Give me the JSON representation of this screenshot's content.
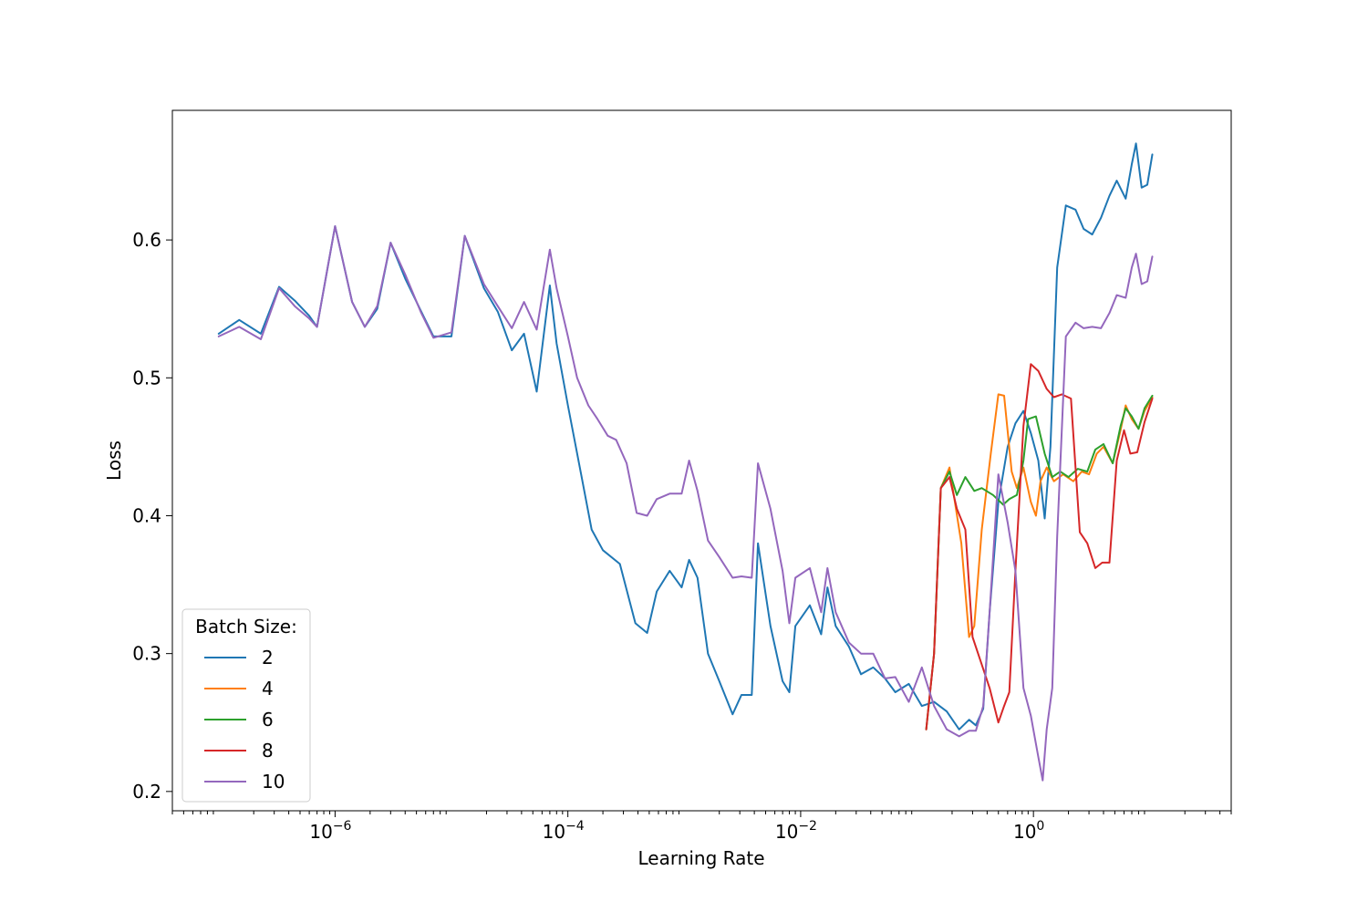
{
  "chart_data": {
    "type": "line",
    "xlabel": "Learning Rate",
    "ylabel": "Loss",
    "xscale": "log",
    "xlim": [
      4e-08,
      50
    ],
    "ylim": [
      0.186,
      0.694
    ],
    "grid": false,
    "x_ticks": [
      {
        "value": 1e-06,
        "base": "10",
        "exp": "−6"
      },
      {
        "value": 0.0001,
        "base": "10",
        "exp": "−4"
      },
      {
        "value": 0.01,
        "base": "10",
        "exp": "−2"
      },
      {
        "value": 1,
        "base": "10",
        "exp": "0"
      }
    ],
    "y_ticks": [
      {
        "value": 0.2,
        "label": "0.2"
      },
      {
        "value": 0.3,
        "label": "0.3"
      },
      {
        "value": 0.4,
        "label": "0.4"
      },
      {
        "value": 0.5,
        "label": "0.5"
      },
      {
        "value": 0.6,
        "label": "0.6"
      }
    ],
    "legend": {
      "title": "Batch Size:",
      "position": "lower-left"
    },
    "series": [
      {
        "name": "2",
        "color": "#1f77b4",
        "points": [
          [
            1e-07,
            0.532
          ],
          [
            1.5e-07,
            0.542
          ],
          [
            2.3e-07,
            0.532
          ],
          [
            3.3e-07,
            0.566
          ],
          [
            4.5e-07,
            0.556
          ],
          [
            6e-07,
            0.545
          ],
          [
            7e-07,
            0.537
          ],
          [
            1e-06,
            0.61
          ],
          [
            1.4e-06,
            0.555
          ],
          [
            1.8e-06,
            0.537
          ],
          [
            2.3e-06,
            0.55
          ],
          [
            3e-06,
            0.598
          ],
          [
            4e-06,
            0.572
          ],
          [
            5.5e-06,
            0.548
          ],
          [
            7e-06,
            0.53
          ],
          [
            1e-05,
            0.53
          ],
          [
            1.3e-05,
            0.603
          ],
          [
            1.9e-05,
            0.565
          ],
          [
            2.5e-05,
            0.548
          ],
          [
            3.3e-05,
            0.52
          ],
          [
            4.2e-05,
            0.532
          ],
          [
            5.4e-05,
            0.49
          ],
          [
            7e-05,
            0.567
          ],
          [
            8e-05,
            0.525
          ],
          [
            0.0001,
            0.48
          ],
          [
            0.00013,
            0.43
          ],
          [
            0.00016,
            0.39
          ],
          [
            0.0002,
            0.375
          ],
          [
            0.00028,
            0.365
          ],
          [
            0.00038,
            0.322
          ],
          [
            0.00048,
            0.315
          ],
          [
            0.00058,
            0.345
          ],
          [
            0.00075,
            0.36
          ],
          [
            0.00095,
            0.348
          ],
          [
            0.0011,
            0.368
          ],
          [
            0.0013,
            0.355
          ],
          [
            0.0016,
            0.3
          ],
          [
            0.002,
            0.28
          ],
          [
            0.0026,
            0.256
          ],
          [
            0.0031,
            0.27
          ],
          [
            0.0038,
            0.27
          ],
          [
            0.0043,
            0.38
          ],
          [
            0.0055,
            0.32
          ],
          [
            0.007,
            0.28
          ],
          [
            0.008,
            0.272
          ],
          [
            0.009,
            0.32
          ],
          [
            0.012,
            0.335
          ],
          [
            0.015,
            0.314
          ],
          [
            0.017,
            0.348
          ],
          [
            0.02,
            0.32
          ],
          [
            0.026,
            0.305
          ],
          [
            0.033,
            0.285
          ],
          [
            0.042,
            0.29
          ],
          [
            0.053,
            0.282
          ],
          [
            0.065,
            0.272
          ],
          [
            0.085,
            0.278
          ],
          [
            0.11,
            0.262
          ],
          [
            0.14,
            0.265
          ],
          [
            0.18,
            0.258
          ],
          [
            0.23,
            0.245
          ],
          [
            0.28,
            0.252
          ],
          [
            0.32,
            0.248
          ],
          [
            0.37,
            0.26
          ],
          [
            0.42,
            0.33
          ],
          [
            0.5,
            0.41
          ],
          [
            0.6,
            0.45
          ],
          [
            0.7,
            0.467
          ],
          [
            0.82,
            0.476
          ],
          [
            0.95,
            0.46
          ],
          [
            1.1,
            0.44
          ],
          [
            1.25,
            0.398
          ],
          [
            1.4,
            0.45
          ],
          [
            1.6,
            0.58
          ],
          [
            1.9,
            0.625
          ],
          [
            2.3,
            0.622
          ],
          [
            2.7,
            0.608
          ],
          [
            3.2,
            0.604
          ],
          [
            3.8,
            0.616
          ],
          [
            4.5,
            0.632
          ],
          [
            5.2,
            0.643
          ],
          [
            6.2,
            0.63
          ],
          [
            7.0,
            0.655
          ],
          [
            7.6,
            0.67
          ],
          [
            8.5,
            0.638
          ],
          [
            9.5,
            0.64
          ],
          [
            10.5,
            0.662
          ]
        ]
      },
      {
        "name": "4",
        "color": "#ff7f0e",
        "points": [
          [
            0.12,
            0.245
          ],
          [
            0.14,
            0.3
          ],
          [
            0.16,
            0.42
          ],
          [
            0.19,
            0.435
          ],
          [
            0.24,
            0.38
          ],
          [
            0.28,
            0.312
          ],
          [
            0.31,
            0.32
          ],
          [
            0.36,
            0.39
          ],
          [
            0.43,
            0.445
          ],
          [
            0.5,
            0.488
          ],
          [
            0.56,
            0.487
          ],
          [
            0.65,
            0.432
          ],
          [
            0.72,
            0.42
          ],
          [
            0.82,
            0.435
          ],
          [
            0.95,
            0.41
          ],
          [
            1.05,
            0.4
          ],
          [
            1.15,
            0.425
          ],
          [
            1.3,
            0.435
          ],
          [
            1.5,
            0.425
          ],
          [
            1.8,
            0.43
          ],
          [
            2.2,
            0.425
          ],
          [
            2.6,
            0.432
          ],
          [
            3.0,
            0.43
          ],
          [
            3.5,
            0.445
          ],
          [
            4.0,
            0.45
          ],
          [
            4.8,
            0.438
          ],
          [
            5.6,
            0.462
          ],
          [
            6.2,
            0.48
          ],
          [
            7.0,
            0.47
          ],
          [
            8.0,
            0.463
          ],
          [
            9.0,
            0.476
          ],
          [
            10.5,
            0.486
          ]
        ]
      },
      {
        "name": "6",
        "color": "#2ca02c",
        "points": [
          [
            0.12,
            0.245
          ],
          [
            0.14,
            0.3
          ],
          [
            0.16,
            0.42
          ],
          [
            0.19,
            0.432
          ],
          [
            0.22,
            0.415
          ],
          [
            0.26,
            0.428
          ],
          [
            0.31,
            0.418
          ],
          [
            0.36,
            0.42
          ],
          [
            0.45,
            0.415
          ],
          [
            0.55,
            0.408
          ],
          [
            0.62,
            0.412
          ],
          [
            0.72,
            0.415
          ],
          [
            0.82,
            0.44
          ],
          [
            0.9,
            0.47
          ],
          [
            1.05,
            0.472
          ],
          [
            1.25,
            0.445
          ],
          [
            1.45,
            0.428
          ],
          [
            1.7,
            0.432
          ],
          [
            2.0,
            0.428
          ],
          [
            2.4,
            0.434
          ],
          [
            2.9,
            0.432
          ],
          [
            3.4,
            0.448
          ],
          [
            4.0,
            0.452
          ],
          [
            4.8,
            0.438
          ],
          [
            5.6,
            0.465
          ],
          [
            6.2,
            0.478
          ],
          [
            7.0,
            0.472
          ],
          [
            8.0,
            0.463
          ],
          [
            9.0,
            0.478
          ],
          [
            10.5,
            0.487
          ]
        ]
      },
      {
        "name": "8",
        "color": "#d62728",
        "points": [
          [
            0.12,
            0.245
          ],
          [
            0.14,
            0.3
          ],
          [
            0.16,
            0.42
          ],
          [
            0.19,
            0.428
          ],
          [
            0.22,
            0.405
          ],
          [
            0.26,
            0.39
          ],
          [
            0.3,
            0.312
          ],
          [
            0.35,
            0.295
          ],
          [
            0.42,
            0.275
          ],
          [
            0.5,
            0.25
          ],
          [
            0.56,
            0.262
          ],
          [
            0.62,
            0.272
          ],
          [
            0.7,
            0.36
          ],
          [
            0.82,
            0.465
          ],
          [
            0.95,
            0.51
          ],
          [
            1.1,
            0.505
          ],
          [
            1.3,
            0.492
          ],
          [
            1.5,
            0.486
          ],
          [
            1.75,
            0.488
          ],
          [
            2.1,
            0.485
          ],
          [
            2.5,
            0.388
          ],
          [
            2.9,
            0.38
          ],
          [
            3.4,
            0.362
          ],
          [
            3.9,
            0.366
          ],
          [
            4.5,
            0.366
          ],
          [
            5.2,
            0.44
          ],
          [
            6.0,
            0.462
          ],
          [
            6.8,
            0.445
          ],
          [
            7.8,
            0.446
          ],
          [
            9.0,
            0.468
          ],
          [
            10.5,
            0.485
          ]
        ]
      },
      {
        "name": "10",
        "color": "#9467bd",
        "points": [
          [
            1e-07,
            0.53
          ],
          [
            1.5e-07,
            0.537
          ],
          [
            2.3e-07,
            0.528
          ],
          [
            3.3e-07,
            0.565
          ],
          [
            4.5e-07,
            0.552
          ],
          [
            6e-07,
            0.543
          ],
          [
            7e-07,
            0.537
          ],
          [
            1e-06,
            0.61
          ],
          [
            1.4e-06,
            0.555
          ],
          [
            1.8e-06,
            0.537
          ],
          [
            2.3e-06,
            0.552
          ],
          [
            3e-06,
            0.598
          ],
          [
            4e-06,
            0.575
          ],
          [
            5.5e-06,
            0.547
          ],
          [
            7e-06,
            0.529
          ],
          [
            1e-05,
            0.533
          ],
          [
            1.3e-05,
            0.603
          ],
          [
            1.9e-05,
            0.568
          ],
          [
            2.5e-05,
            0.552
          ],
          [
            3.3e-05,
            0.536
          ],
          [
            4.2e-05,
            0.555
          ],
          [
            5.4e-05,
            0.535
          ],
          [
            7e-05,
            0.593
          ],
          [
            8e-05,
            0.565
          ],
          [
            0.0001,
            0.53
          ],
          [
            0.00012,
            0.5
          ],
          [
            0.00015,
            0.48
          ],
          [
            0.00018,
            0.47
          ],
          [
            0.00022,
            0.458
          ],
          [
            0.00026,
            0.455
          ],
          [
            0.00032,
            0.438
          ],
          [
            0.00039,
            0.402
          ],
          [
            0.00048,
            0.4
          ],
          [
            0.00058,
            0.412
          ],
          [
            0.00075,
            0.416
          ],
          [
            0.00095,
            0.416
          ],
          [
            0.0011,
            0.44
          ],
          [
            0.0013,
            0.418
          ],
          [
            0.0016,
            0.382
          ],
          [
            0.002,
            0.37
          ],
          [
            0.0026,
            0.355
          ],
          [
            0.0031,
            0.356
          ],
          [
            0.0038,
            0.355
          ],
          [
            0.0043,
            0.438
          ],
          [
            0.0055,
            0.405
          ],
          [
            0.007,
            0.36
          ],
          [
            0.008,
            0.322
          ],
          [
            0.009,
            0.355
          ],
          [
            0.012,
            0.362
          ],
          [
            0.015,
            0.33
          ],
          [
            0.017,
            0.362
          ],
          [
            0.02,
            0.33
          ],
          [
            0.026,
            0.308
          ],
          [
            0.033,
            0.3
          ],
          [
            0.042,
            0.3
          ],
          [
            0.053,
            0.282
          ],
          [
            0.065,
            0.283
          ],
          [
            0.085,
            0.265
          ],
          [
            0.11,
            0.29
          ],
          [
            0.14,
            0.262
          ],
          [
            0.18,
            0.245
          ],
          [
            0.23,
            0.24
          ],
          [
            0.28,
            0.244
          ],
          [
            0.32,
            0.244
          ],
          [
            0.37,
            0.262
          ],
          [
            0.42,
            0.33
          ],
          [
            0.5,
            0.43
          ],
          [
            0.6,
            0.395
          ],
          [
            0.7,
            0.36
          ],
          [
            0.82,
            0.275
          ],
          [
            0.95,
            0.255
          ],
          [
            1.1,
            0.225
          ],
          [
            1.2,
            0.208
          ],
          [
            1.3,
            0.245
          ],
          [
            1.45,
            0.275
          ],
          [
            1.6,
            0.385
          ],
          [
            1.9,
            0.53
          ],
          [
            2.3,
            0.54
          ],
          [
            2.7,
            0.536
          ],
          [
            3.2,
            0.537
          ],
          [
            3.8,
            0.536
          ],
          [
            4.5,
            0.547
          ],
          [
            5.2,
            0.56
          ],
          [
            6.2,
            0.558
          ],
          [
            7.0,
            0.58
          ],
          [
            7.6,
            0.59
          ],
          [
            8.5,
            0.568
          ],
          [
            9.5,
            0.57
          ],
          [
            10.5,
            0.588
          ]
        ]
      }
    ]
  }
}
